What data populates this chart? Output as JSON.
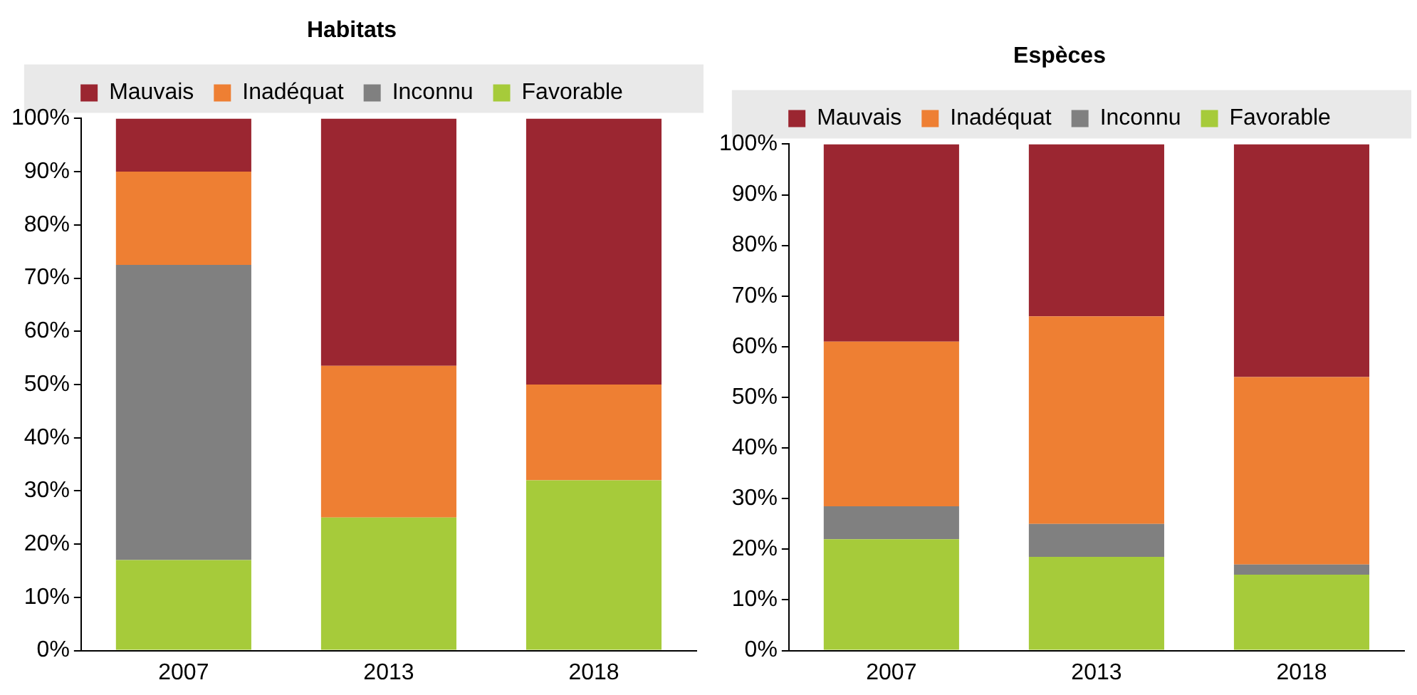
{
  "chart_data": [
    {
      "type": "bar",
      "title": "Habitats",
      "stacked": true,
      "legend": "top",
      "grid": false,
      "categories": [
        "2007",
        "2013",
        "2018"
      ],
      "ylim": [
        0,
        100
      ],
      "yticks": [
        {
          "value": 0,
          "label": "0%"
        },
        {
          "value": 10,
          "label": "10%"
        },
        {
          "value": 20,
          "label": "20%"
        },
        {
          "value": 30,
          "label": "30%"
        },
        {
          "value": 40,
          "label": "40%"
        },
        {
          "value": 50,
          "label": "50%"
        },
        {
          "value": 60,
          "label": "60%"
        },
        {
          "value": 70,
          "label": "70%"
        },
        {
          "value": 80,
          "label": "80%"
        },
        {
          "value": 90,
          "label": "90%"
        },
        {
          "value": 100,
          "label": "100%"
        }
      ],
      "series": [
        {
          "name": "Favorable",
          "color": "#a6cb3a",
          "values": [
            17,
            25,
            32
          ]
        },
        {
          "name": "Inconnu",
          "color": "#808080",
          "values": [
            55.5,
            0,
            0
          ]
        },
        {
          "name": "Inadéquat",
          "color": "#ee7f33",
          "values": [
            17.5,
            28.5,
            18
          ]
        },
        {
          "name": "Mauvais",
          "color": "#9b2631",
          "values": [
            10,
            46.5,
            50
          ]
        }
      ]
    },
    {
      "type": "bar",
      "title": "Espèces",
      "stacked": true,
      "legend": "top",
      "grid": false,
      "categories": [
        "2007",
        "2013",
        "2018"
      ],
      "ylim": [
        0,
        100
      ],
      "yticks": [
        {
          "value": 0,
          "label": "0%"
        },
        {
          "value": 10,
          "label": "10%"
        },
        {
          "value": 20,
          "label": "20%"
        },
        {
          "value": 30,
          "label": "30%"
        },
        {
          "value": 40,
          "label": "40%"
        },
        {
          "value": 50,
          "label": "50%"
        },
        {
          "value": 60,
          "label": "60%"
        },
        {
          "value": 70,
          "label": "70%"
        },
        {
          "value": 80,
          "label": "80%"
        },
        {
          "value": 90,
          "label": "90%"
        },
        {
          "value": 100,
          "label": "100%"
        }
      ],
      "series": [
        {
          "name": "Favorable",
          "color": "#a6cb3a",
          "values": [
            22,
            18.5,
            15
          ]
        },
        {
          "name": "Inconnu",
          "color": "#808080",
          "values": [
            6.5,
            6.5,
            2
          ]
        },
        {
          "name": "Inadéquat",
          "color": "#ee7f33",
          "values": [
            32.5,
            41,
            37
          ]
        },
        {
          "name": "Mauvais",
          "color": "#9b2631",
          "values": [
            39,
            34,
            46
          ]
        }
      ]
    }
  ]
}
